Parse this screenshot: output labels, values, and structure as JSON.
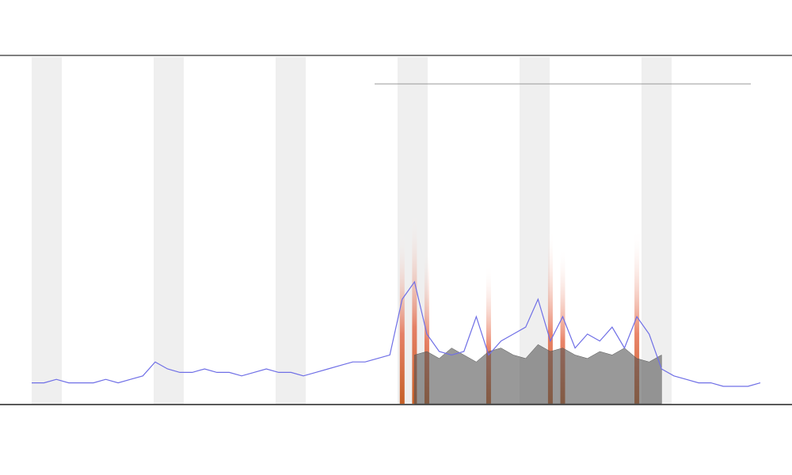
{
  "chart_data": {
    "type": "line",
    "x": [
      0,
      1,
      2,
      3,
      4,
      5,
      6,
      7,
      8,
      9,
      10,
      11,
      12,
      13,
      14,
      15,
      16,
      17,
      18,
      19,
      20,
      21,
      22,
      23,
      24,
      25,
      26,
      27,
      28,
      29,
      30,
      31,
      32,
      33,
      34,
      35,
      36,
      37,
      38,
      39,
      40,
      41,
      42,
      43,
      44,
      45,
      46,
      47,
      48,
      49,
      50,
      51,
      52,
      53,
      54,
      55,
      56,
      57,
      58,
      59
    ],
    "xlim": [
      0,
      59
    ],
    "ylim": [
      0,
      100
    ],
    "series": [
      {
        "type": "line",
        "color": "#6f6fe6",
        "values": [
          6,
          6,
          7,
          6,
          6,
          6,
          7,
          6,
          7,
          8,
          12,
          10,
          9,
          9,
          10,
          9,
          9,
          8,
          9,
          10,
          9,
          9,
          8,
          9,
          10,
          11,
          12,
          12,
          13,
          14,
          30,
          35,
          20,
          15,
          14,
          15,
          25,
          14,
          18,
          20,
          22,
          30,
          18,
          25,
          16,
          20,
          18,
          22,
          16,
          25,
          20,
          10,
          8,
          7,
          6,
          6,
          5,
          5,
          5,
          6
        ]
      },
      {
        "type": "area",
        "color": "#555555",
        "values": [
          null,
          null,
          null,
          null,
          null,
          null,
          null,
          null,
          null,
          null,
          null,
          null,
          null,
          null,
          null,
          null,
          null,
          null,
          null,
          null,
          null,
          null,
          null,
          null,
          null,
          null,
          null,
          null,
          null,
          null,
          null,
          14,
          15,
          13,
          16,
          14,
          12,
          15,
          16,
          14,
          13,
          17,
          15,
          16,
          14,
          13,
          15,
          14,
          16,
          13,
          12,
          14,
          null,
          null,
          null,
          null,
          null,
          null,
          null,
          null
        ]
      },
      {
        "type": "bar",
        "color": "#e0502a",
        "values": [
          0,
          0,
          0,
          0,
          0,
          0,
          0,
          0,
          0,
          0,
          0,
          0,
          0,
          0,
          0,
          0,
          0,
          0,
          0,
          0,
          0,
          0,
          0,
          0,
          0,
          0,
          0,
          0,
          0,
          0,
          50,
          55,
          45,
          0,
          0,
          0,
          0,
          40,
          0,
          0,
          0,
          0,
          50,
          45,
          0,
          0,
          0,
          0,
          0,
          50,
          0,
          0,
          0,
          0,
          0,
          0,
          0,
          0,
          0,
          0
        ]
      }
    ]
  }
}
